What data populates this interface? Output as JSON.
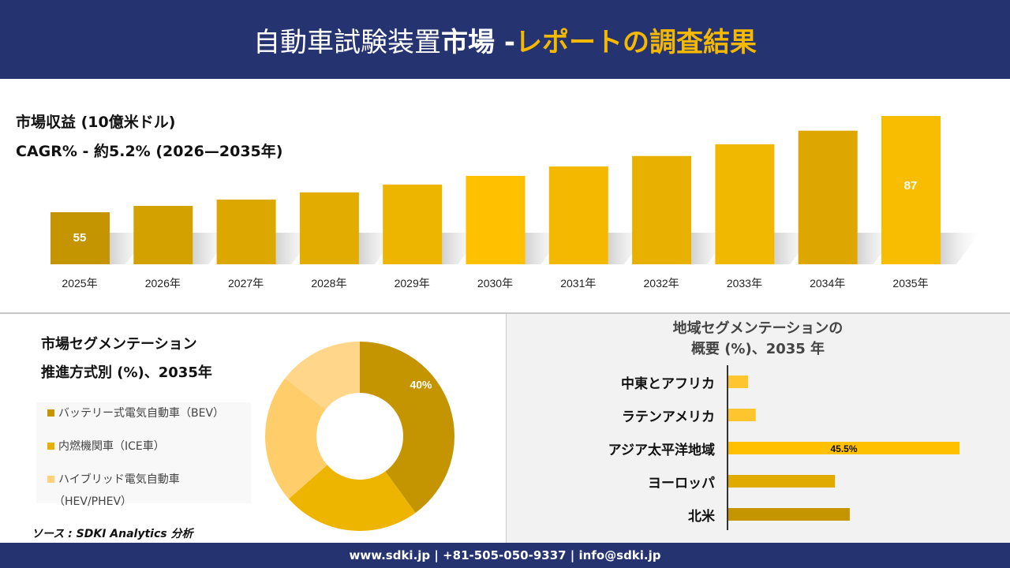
{
  "header": {
    "title_part1": "自動車試験装置",
    "title_part2": "市場 -",
    "title_part3": "レポートの調査結果"
  },
  "revenue": {
    "title": "市場収益 (10億米ドル)",
    "cagr": "CAGR% - 約5.2% (2026—2035年)"
  },
  "segment": {
    "title_line1": "市場セグメンテーション",
    "title_line2": "推進方式別 (%)、2035年",
    "legend": [
      {
        "label": "バッテリー式電気自動車（BEV）",
        "color": "#C49500"
      },
      {
        "label": "内燃機関車（ICE車）",
        "color": "#E8AE00"
      },
      {
        "label": "ハイブリッド電気自動車",
        "label2": "（HEV/PHEV）",
        "color": "#FFD27A"
      }
    ]
  },
  "region": {
    "title_line1": "地域セグメンテーションの",
    "title_line2": "概要 (%)、2035 年"
  },
  "source": "ソース : SDKI Analytics 分析",
  "footer": "www.sdki.jp | +81-505-050-9337 | info@sdki.jp",
  "chart_data": [
    {
      "type": "bar",
      "categories": [
        "2025年",
        "2026年",
        "2027年",
        "2028年",
        "2029年",
        "2030年",
        "2031年",
        "2032年",
        "2033年",
        "2034年",
        "2035年"
      ],
      "values": [
        55,
        57.1,
        59.2,
        61.6,
        64.2,
        67.1,
        70.2,
        73.7,
        77.6,
        82.1,
        87
      ],
      "data_labels": {
        "0": "55",
        "10": "87"
      },
      "colors": [
        "#C49500",
        "#D4A200",
        "#DCA800",
        "#E2AD00",
        "#EDB400",
        "#FFC000",
        "#F4B800",
        "#E8B000",
        "#F0B800",
        "#DDA600",
        "#F8BC00"
      ],
      "ylabel": "市場収益 (10億米ドル)"
    },
    {
      "type": "pie",
      "donut": true,
      "values": [
        40,
        23.5,
        22,
        14.5
      ],
      "labels": [
        "バッテリー式電気自動車（BEV）",
        "内燃機関車（ICE車）",
        "ハイブリッド電気自動車（HEV/PHEV）",
        ""
      ],
      "colors": [
        "#C49500",
        "#EDB400",
        "#FFCE6A",
        "#FFD68A"
      ],
      "data_labels": {
        "0": "40%"
      }
    },
    {
      "type": "bar",
      "orientation": "horizontal",
      "categories": [
        "中東とアフリカ",
        "ラテンアメリカ",
        "アジア太平洋地域",
        "ヨーロッパ",
        "北米"
      ],
      "values": [
        3.9,
        5.4,
        45.5,
        21,
        23.9
      ],
      "data_labels": {
        "2": "45.5%"
      },
      "colors": [
        "#FFC52E",
        "#FFC52E",
        "#FFC000",
        "#E0AA00",
        "#C49500"
      ]
    }
  ]
}
